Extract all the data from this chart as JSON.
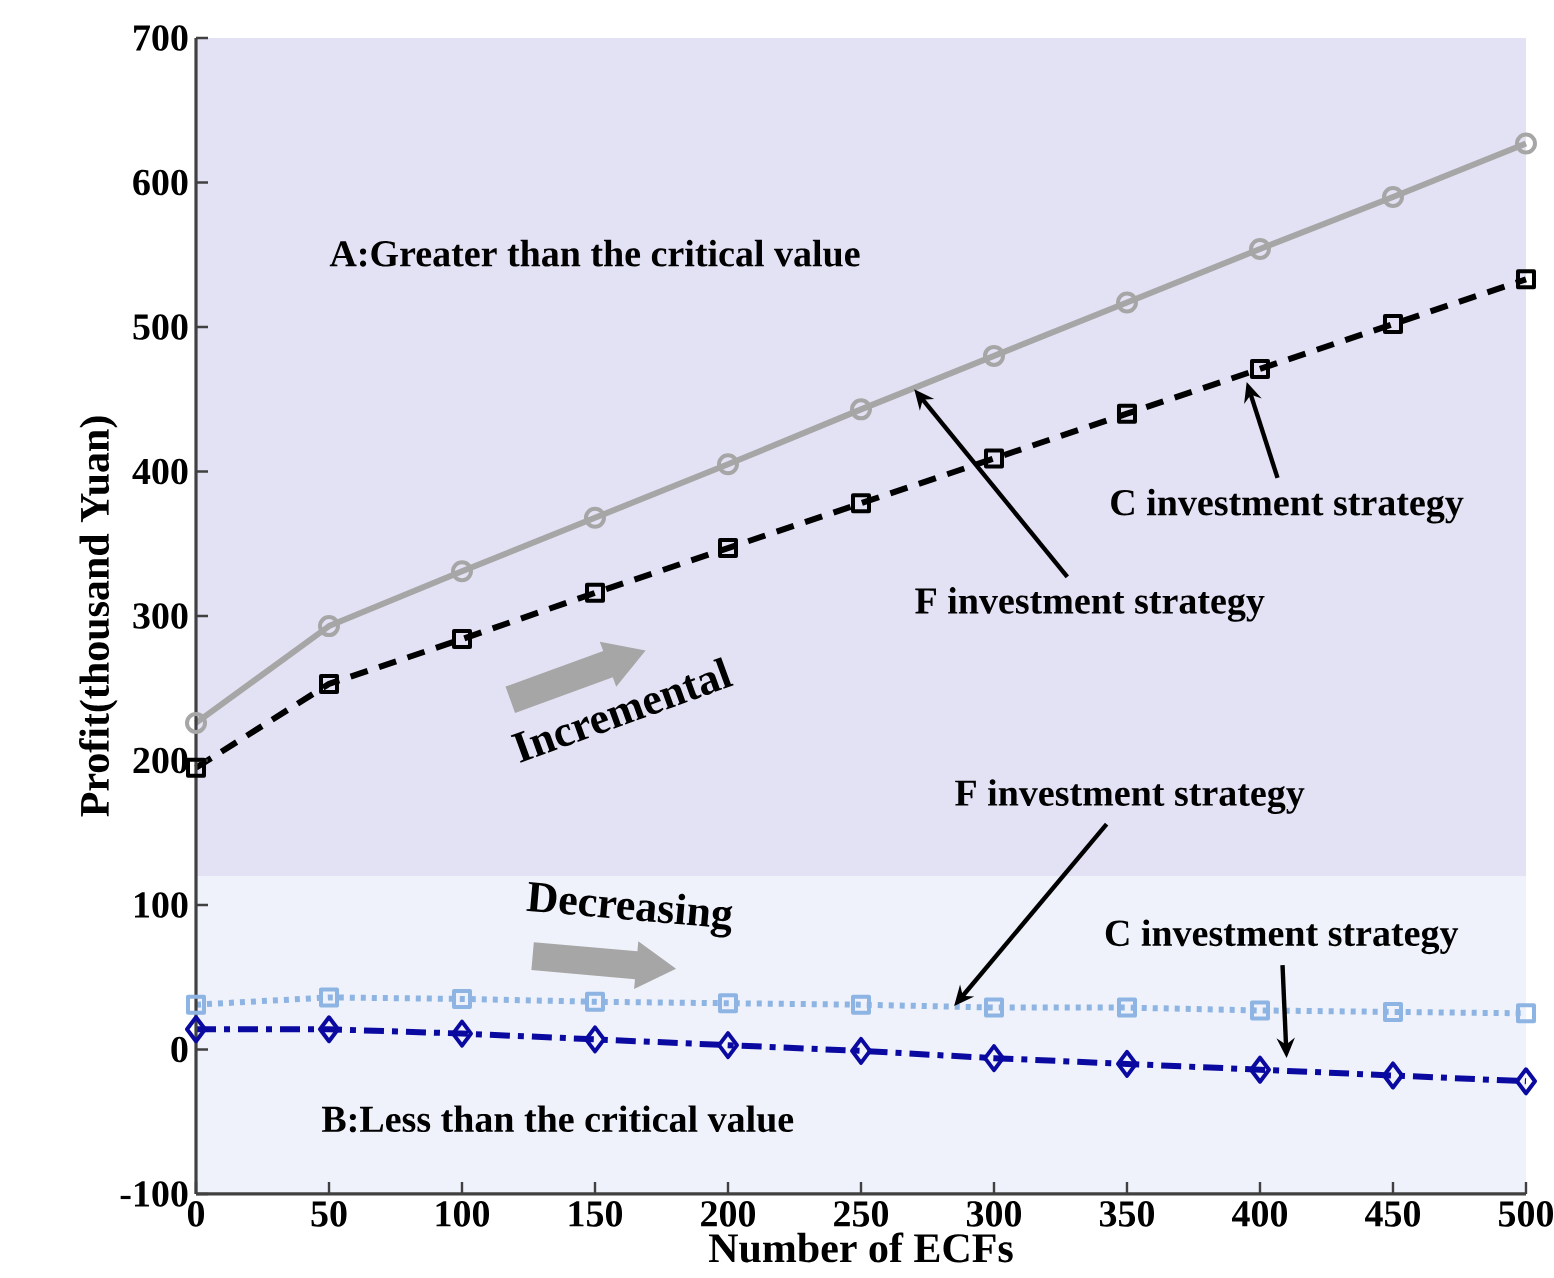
{
  "chart_data": {
    "type": "line",
    "xlabel": "Number of ECFs",
    "ylabel": "Profit(thousand Yuan)",
    "x": [
      0,
      50,
      100,
      150,
      200,
      250,
      300,
      350,
      400,
      450,
      500
    ],
    "xlim": [
      0,
      500
    ],
    "xticks": [
      0,
      50,
      100,
      150,
      200,
      250,
      300,
      350,
      400,
      450,
      500
    ],
    "ylim": [
      -100,
      700
    ],
    "yticks": [
      -100,
      0,
      100,
      200,
      300,
      400,
      500,
      600,
      700
    ],
    "grid": false,
    "series": [
      {
        "color": "#a6a6a6",
        "marker": "circle",
        "line_style": "solid",
        "values": [
          226,
          293,
          331,
          368,
          405,
          443,
          480,
          517,
          554,
          590,
          627
        ]
      },
      {
        "color": "#000000",
        "marker": "square",
        "line_style": "dashed",
        "values": [
          195,
          253,
          284,
          316,
          347,
          378,
          409,
          440,
          471,
          502,
          533
        ]
      },
      {
        "color": "#8db4e2",
        "marker": "square",
        "line_style": "dotted",
        "values": [
          31,
          36,
          35,
          33,
          32,
          31,
          29,
          29,
          27,
          26,
          25
        ]
      },
      {
        "color": "#0a0aa0",
        "marker": "diamond",
        "line_style": "dashdot",
        "values": [
          14,
          14,
          11,
          7,
          3,
          -1,
          -6,
          -10,
          -14,
          -18,
          -22
        ]
      }
    ],
    "bands": [
      {
        "axis": "y",
        "from": 120,
        "to": 700,
        "color": "#e3e2f4"
      },
      {
        "axis": "y",
        "from": -100,
        "to": 120,
        "color": "#eff2fb"
      }
    ],
    "annotations": [
      "A:Greater than the critical value",
      "Incremental",
      "Decreasing",
      "B:Less than the critical value",
      {
        "text": "F investment strategy",
        "x": 270,
        "y": 457
      },
      {
        "text": "C investment strategy",
        "x": 395,
        "y": 462
      },
      {
        "text": "F investment strategy",
        "x": 285,
        "y": 30
      },
      {
        "text": "C investment strategy",
        "x": 410,
        "y": -6
      }
    ]
  }
}
